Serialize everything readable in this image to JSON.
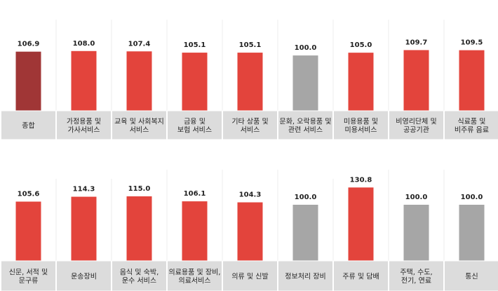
{
  "chart_data": [
    {
      "type": "bar",
      "categories": [
        [
          "종합"
        ],
        [
          "가정용품 및",
          "가사서비스"
        ],
        [
          "교육 및 사회복지",
          "서비스"
        ],
        [
          "금융 및",
          "보험 서비스"
        ],
        [
          "기타 상품 및",
          "서비스"
        ],
        [
          "문화, 오락용품 및",
          "관련 서비스"
        ],
        [
          "미용용품 및",
          "미용서비스"
        ],
        [
          "비영리단체 및",
          "공공기관"
        ],
        [
          "식료품 및",
          "비주류 음료"
        ]
      ],
      "values": [
        106.9,
        108.0,
        107.4,
        105.1,
        105.1,
        100.0,
        105.0,
        109.7,
        109.5
      ],
      "value_labels": [
        "106.9",
        "108.0",
        "107.4",
        "105.1",
        "105.1",
        "100.0",
        "105.0",
        "109.7",
        "109.5"
      ],
      "bar_colors": [
        "#a03636",
        "#e3443c",
        "#e3443c",
        "#e3443c",
        "#e3443c",
        "#a6a6a6",
        "#e3443c",
        "#e3443c",
        "#e3443c"
      ],
      "ylim": [
        0,
        140
      ]
    },
    {
      "type": "bar",
      "categories": [
        [
          "신문, 서적 및",
          "문구류"
        ],
        [
          "운송장비"
        ],
        [
          "음식 및 숙박,",
          "운수 서비스"
        ],
        [
          "의료용품 및 장비,",
          "의료서비스"
        ],
        [
          "의류 및 신발"
        ],
        [
          "정보처리 장비"
        ],
        [
          "주류 및 담배"
        ],
        [
          "주택, 수도,",
          "전기, 연료"
        ],
        [
          "통신"
        ]
      ],
      "values": [
        105.6,
        114.3,
        115.0,
        106.1,
        104.3,
        100.0,
        130.8,
        100.0,
        100.0
      ],
      "value_labels": [
        "105.6",
        "114.3",
        "115.0",
        "106.1",
        "104.3",
        "100.0",
        "130.8",
        "100.0",
        "100.0"
      ],
      "bar_colors": [
        "#e3443c",
        "#e3443c",
        "#e3443c",
        "#e3443c",
        "#e3443c",
        "#a6a6a6",
        "#e3443c",
        "#a6a6a6",
        "#a6a6a6"
      ],
      "ylim": [
        0,
        140
      ]
    }
  ],
  "colors": {
    "bar_up": "#e3443c",
    "bar_total": "#a03636",
    "bar_base": "#a6a6a6",
    "category_box": "#dcdcdc",
    "separator": "#ececec"
  }
}
